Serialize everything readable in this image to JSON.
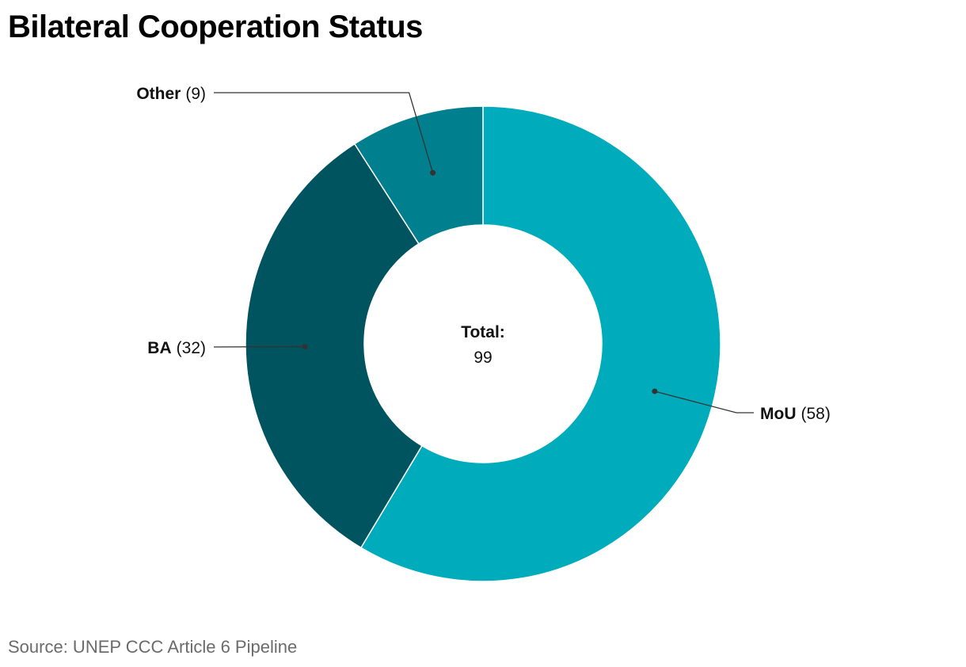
{
  "chart_data": {
    "type": "pie",
    "style": "donut",
    "title": "Bilateral Cooperation Status",
    "source": "Source: UNEP CCC Article 6 Pipeline",
    "center_label": "Total:",
    "center_value": "99",
    "slices": [
      {
        "label": "MoU",
        "value": 58,
        "value_text": "(58)",
        "color": "#00ACBB"
      },
      {
        "label": "BA",
        "value": 32,
        "value_text": "(32)",
        "color": "#005460"
      },
      {
        "label": "Other",
        "value": 9,
        "value_text": "(9)",
        "color": "#00808E"
      }
    ]
  }
}
